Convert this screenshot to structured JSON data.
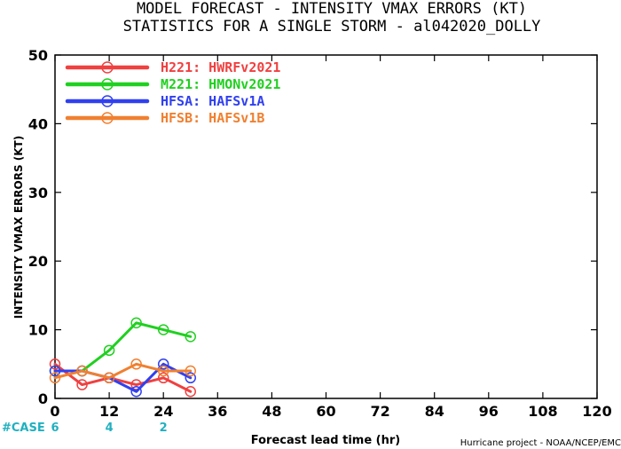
{
  "chart_data": {
    "type": "line",
    "title": "MODEL FORECAST - INTENSITY VMAX ERRORS (KT)",
    "subtitle": "STATISTICS FOR A SINGLE STORM - al042020_DOLLY",
    "xlabel": "Forecast lead time (hr)",
    "ylabel": "INTENSITY VMAX ERRORS (KT)",
    "xlim": [
      0,
      120
    ],
    "ylim": [
      0,
      50
    ],
    "x_ticks": [
      0,
      12,
      24,
      36,
      48,
      60,
      72,
      84,
      96,
      108,
      120
    ],
    "y_ticks": [
      0,
      10,
      20,
      30,
      40,
      50
    ],
    "grid": false,
    "legend_position": "top-left",
    "series": [
      {
        "name": "H221: HWRFv2021",
        "color": "#f04040",
        "x": [
          0,
          6,
          12,
          18,
          24,
          30
        ],
        "values": [
          5,
          2,
          3,
          2,
          3,
          1
        ]
      },
      {
        "name": "M221: HMONv2021",
        "color": "#20d020",
        "x": [
          0,
          6,
          12,
          18,
          24,
          30
        ],
        "values": [
          4,
          4,
          7,
          11,
          10,
          9
        ]
      },
      {
        "name": "HFSA: HAFSv1A",
        "color": "#3040f0",
        "x": [
          0,
          6,
          12,
          18,
          24,
          30
        ],
        "values": [
          4,
          4,
          3,
          1,
          5,
          3
        ]
      },
      {
        "name": "HFSB: HAFSv1B",
        "color": "#f08030",
        "x": [
          0,
          6,
          12,
          18,
          24,
          30
        ],
        "values": [
          3,
          4,
          3,
          5,
          4,
          4
        ]
      }
    ],
    "cases": {
      "label": "#CASE",
      "color": "#20b0c0",
      "x": [
        0,
        12,
        24
      ],
      "counts": [
        "6",
        "4",
        "2"
      ]
    },
    "credit": "Hurricane project - NOAA/NCEP/EMC"
  }
}
